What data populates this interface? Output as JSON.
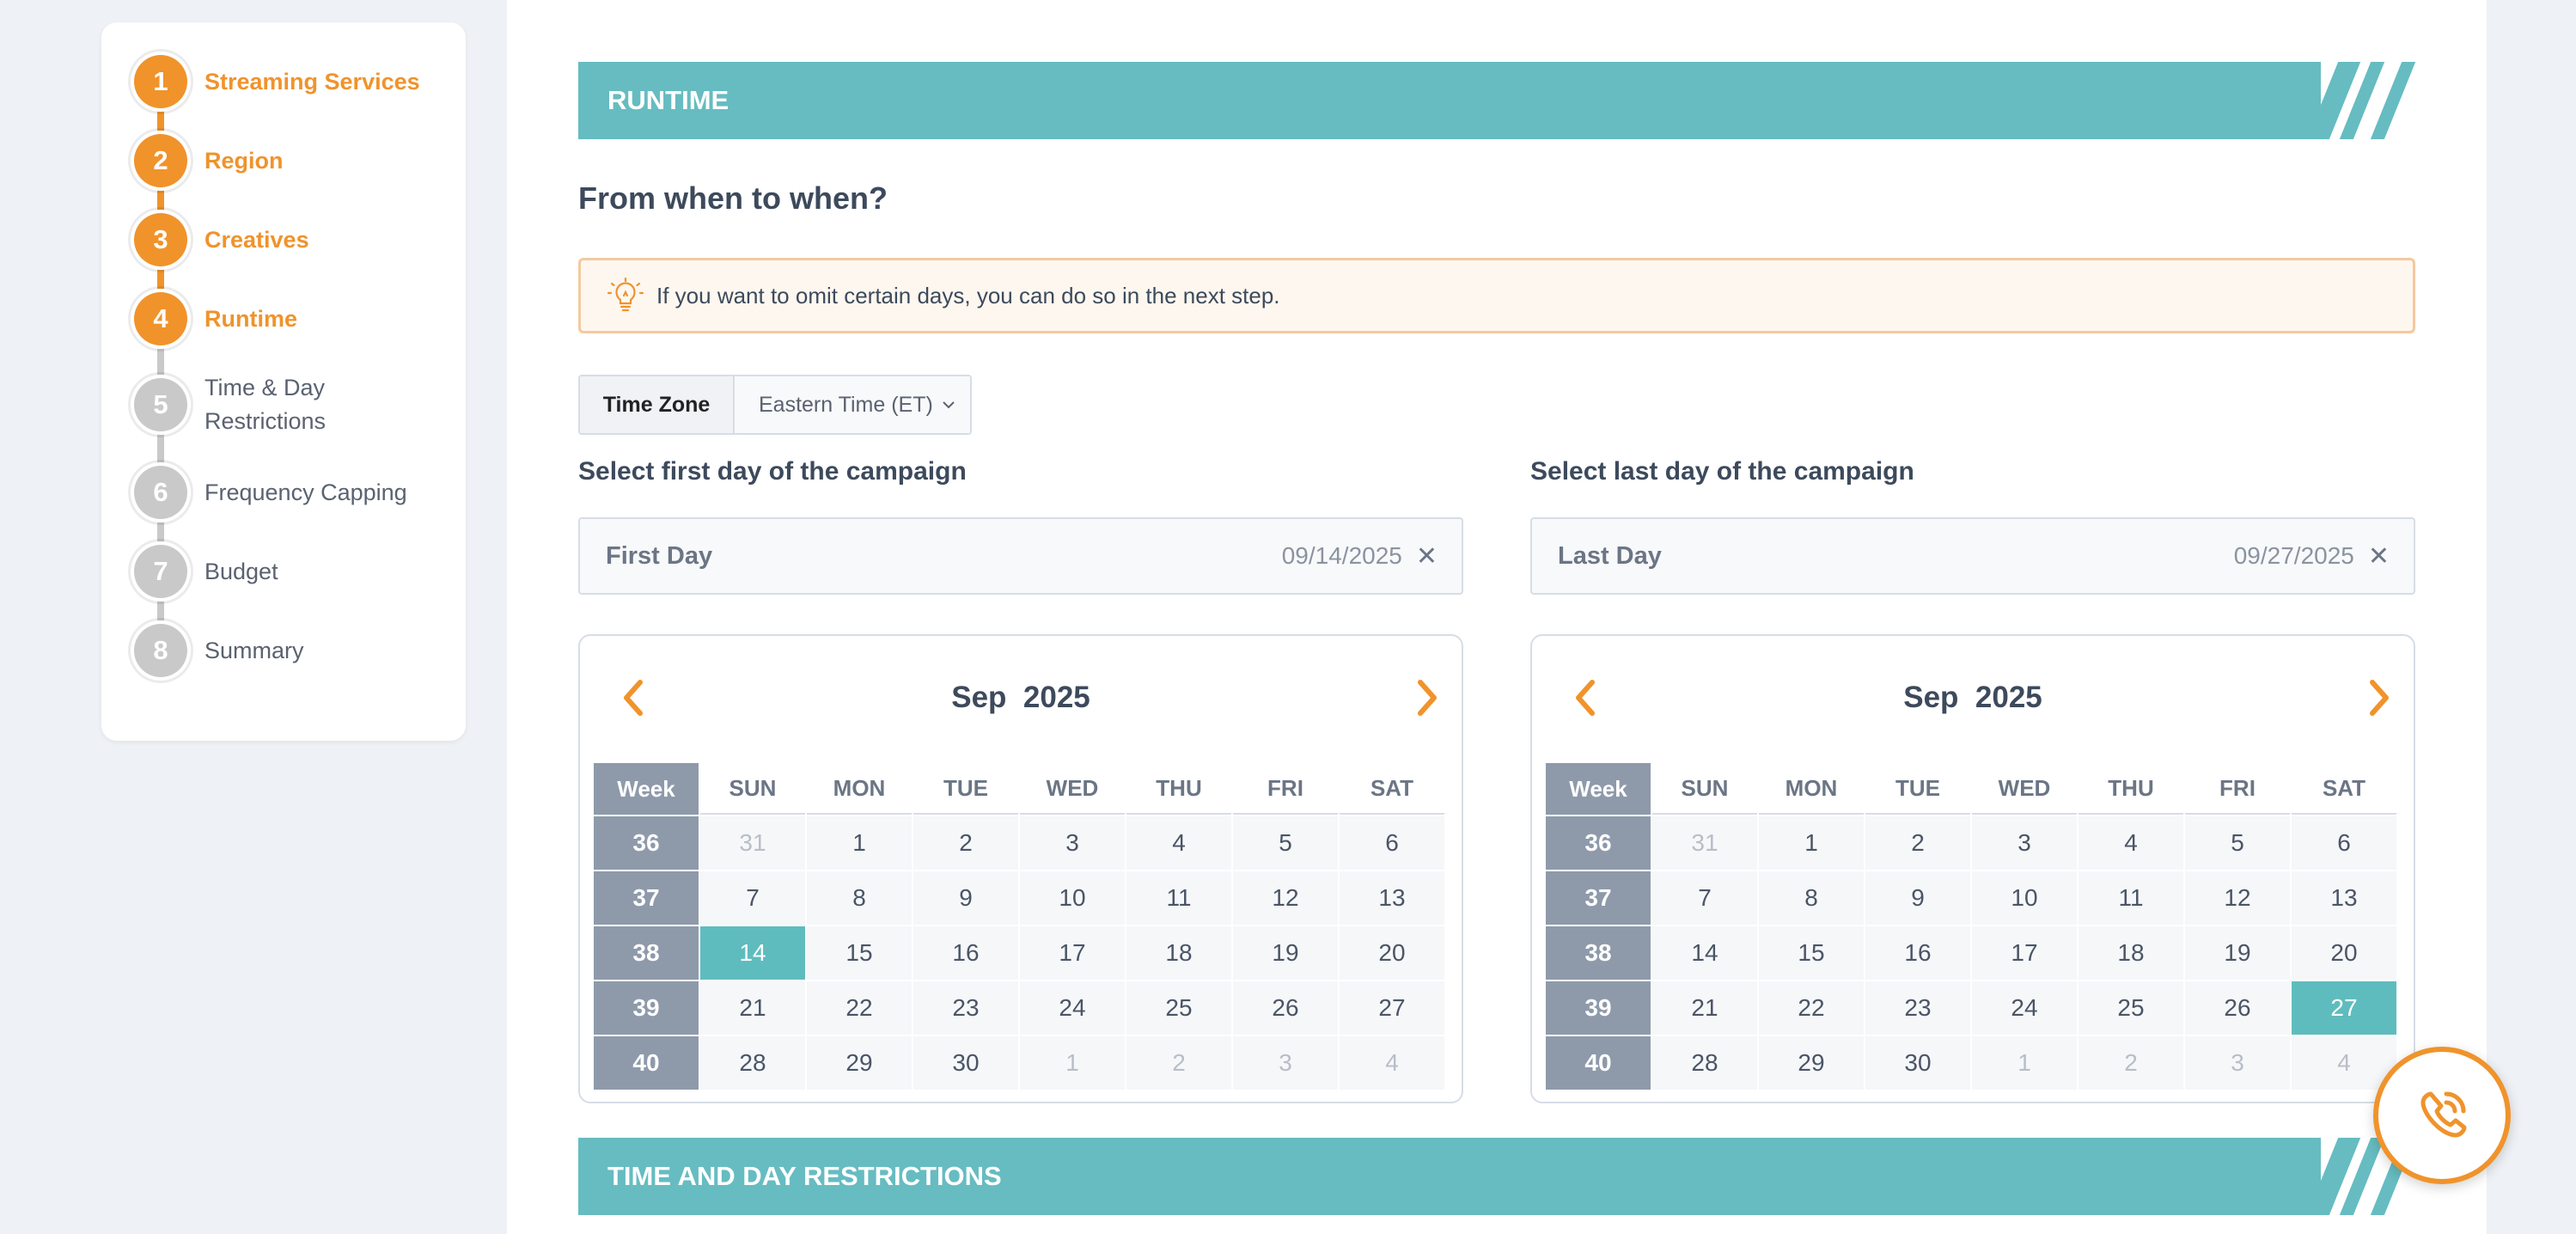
{
  "stepper": {
    "steps": [
      {
        "number": "1",
        "label": "Streaming Services",
        "state": "completed"
      },
      {
        "number": "2",
        "label": "Region",
        "state": "completed"
      },
      {
        "number": "3",
        "label": "Creatives",
        "state": "completed"
      },
      {
        "number": "4",
        "label": "Runtime",
        "state": "current"
      },
      {
        "number": "5",
        "label": "Time & Day Restrictions",
        "state": "upcoming"
      },
      {
        "number": "6",
        "label": "Frequency Capping",
        "state": "upcoming"
      },
      {
        "number": "7",
        "label": "Budget",
        "state": "upcoming"
      },
      {
        "number": "8",
        "label": "Summary",
        "state": "upcoming"
      }
    ],
    "active_color": "#f0932b",
    "inactive_color": "#c9c9c9"
  },
  "runtime": {
    "section_title": "RUNTIME",
    "heading": "From when to when?",
    "tip": "If you want to omit certain days, you can do so in the next step.",
    "timezone": {
      "label": "Time Zone",
      "value": "Eastern Time (ET)"
    },
    "first": {
      "title": "Select first day of the campaign",
      "placeholder": "First Day",
      "value": "09/14/2025"
    },
    "last": {
      "title": "Select last day of the campaign",
      "placeholder": "Last Day",
      "value": "09/27/2025"
    }
  },
  "calendar": {
    "month": "Sep",
    "year": "2025",
    "week_header": "Week",
    "weekdays": [
      "SUN",
      "MON",
      "TUE",
      "WED",
      "THU",
      "FRI",
      "SAT"
    ],
    "weeks": [
      {
        "week": "36",
        "days": [
          "31",
          "1",
          "2",
          "3",
          "4",
          "5",
          "6"
        ],
        "muted": [
          0
        ]
      },
      {
        "week": "37",
        "days": [
          "7",
          "8",
          "9",
          "10",
          "11",
          "12",
          "13"
        ],
        "muted": []
      },
      {
        "week": "38",
        "days": [
          "14",
          "15",
          "16",
          "17",
          "18",
          "19",
          "20"
        ],
        "muted": []
      },
      {
        "week": "39",
        "days": [
          "21",
          "22",
          "23",
          "24",
          "25",
          "26",
          "27"
        ],
        "muted": []
      },
      {
        "week": "40",
        "days": [
          "28",
          "29",
          "30",
          "1",
          "2",
          "3",
          "4"
        ],
        "muted": [
          3,
          4,
          5,
          6
        ]
      }
    ],
    "first_selected": "14",
    "last_selected": "27",
    "accent_color": "#5fbcbe"
  },
  "next_section": {
    "title": "TIME AND DAY RESTRICTIONS"
  },
  "colors": {
    "brand_teal": "#66bcc1",
    "brand_orange": "#f0932b"
  },
  "icons": {
    "tip": "lightbulb-icon",
    "call": "phone-call-icon"
  }
}
